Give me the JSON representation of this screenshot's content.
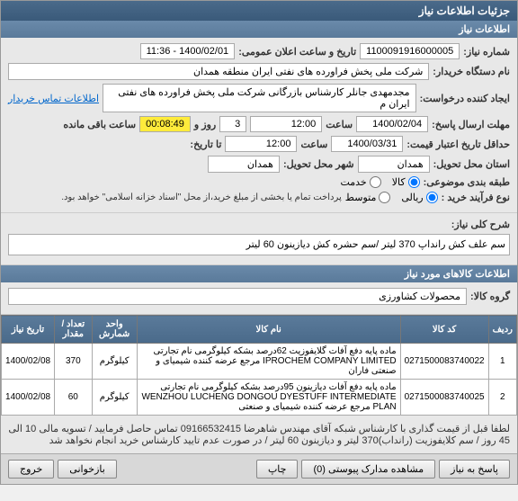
{
  "panel_title": "جزئیات اطلاعات نیاز",
  "main_info_header": "اطلاعات نیاز",
  "labels": {
    "need_number": "شماره نیاز:",
    "announce_datetime": "تاریخ و ساعت اعلان عمومی:",
    "buyer_org": "نام دستگاه خریدار:",
    "creator": "ایجاد کننده درخواست:",
    "contact_info": "اطلاعات تماس خریدار",
    "deadline_date": "مهلت ارسال پاسخ:",
    "deadline_time": "ساعت",
    "days": "روز و",
    "hours_remaining": "ساعت باقی مانده",
    "validity_date": "حداقل تاریخ اعتبار قیمت:",
    "validity_time": "تا تاریخ:",
    "until_time": "ساعت",
    "delivery_province": "استان محل تحویل:",
    "delivery_city": "شهر محل تحویل:",
    "budget_class": "طبقه بندی موضوعی:",
    "goods": "کالا",
    "service": "خدمت",
    "process_type": "نوع فرآیند خرید :",
    "low": "ریالی",
    "medium": "متوسط",
    "budget_note": "پرداخت تمام یا بخشی از مبلغ خرید،از محل \"اسناد خزانه اسلامی\" خواهد بود.",
    "need_title": "شرح کلی نیاز:",
    "items_header": "اطلاعات کالاهای مورد نیاز",
    "goods_group": "گروه کالا:",
    "footer_note": "لطفا قبل از قیمت گذاری با کارشناس شبکه آقای مهندس شاهرضا 09166532415 تماس حاصل فرمایید / تسویه مالی 10 الی 45 روز / سم کلایفوزیت (رانداب)370 لیتر و دیازینون 60 لیتر / در صورت عدم تایید کارشناس خرید انجام نخواهد شد",
    "reply_to": "پاسخ به نیاز",
    "attachments": "مشاهده مدارک پیوستی",
    "print": "چاپ",
    "refresh": "بازخوانی",
    "exit": "خروج"
  },
  "values": {
    "need_number": "1100091916000005",
    "announce_datetime": "1400/02/01 - 11:36",
    "buyer_org": "شرکت ملی پخش فراورده های نفتی ایران منطقه همدان",
    "creator": "مجدمهدی جانلر کارشناس بازرگانی شرکت ملی پخش فراورده های نفتی ایران م",
    "deadline_date": "1400/02/04",
    "deadline_time": "12:00",
    "days_remaining": "3",
    "hours_remaining": "00:08:49",
    "validity_date": "1400/03/31",
    "validity_time": "12:00",
    "delivery_province": "همدان",
    "delivery_city": "همدان",
    "need_title": "سم علف کش رانداپ 370 لیتر /سم حشره کش دیازینون 60 لیتر",
    "goods_group": "محصولات کشاورزی",
    "attachments_count": "(0)"
  },
  "radios": {
    "goods_checked": true,
    "service_checked": false,
    "low_checked": true,
    "medium_checked": false
  },
  "table": {
    "headers": [
      "ردیف",
      "کد کالا",
      "نام کالا",
      "واحد شمارش",
      "تعداد / مقدار",
      "تاریخ نیاز"
    ],
    "rows": [
      {
        "idx": "1",
        "code": "0271500083740022",
        "name": "ماده پایه دفع آفات گلایفوزیت 62درصد بشکه کیلوگرمی نام تجارتی IPROCHEM COMPANY LIMITED مرجع عرضه کننده شیمیای و صنعتی فاران",
        "unit": "کیلوگرم",
        "qty": "370",
        "date": "1400/02/08"
      },
      {
        "idx": "2",
        "code": "0271500083740025",
        "name": "ماده پایه دفع آفات دیازینون 95درصد بشکه کیلوگرمی نام تجارتی WENZHOU LUCHENG DONGOU DYESTUFF INTERMEDIATE PLAN مرجع عرضه کننده شیمیای و صنعتی",
        "unit": "کیلوگرم",
        "qty": "60",
        "date": "1400/02/08"
      }
    ]
  }
}
